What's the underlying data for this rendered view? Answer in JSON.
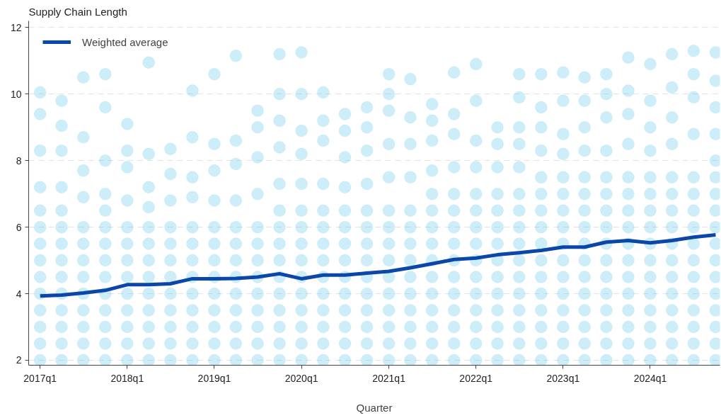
{
  "chart_data": {
    "type": "scatter",
    "ylabel": "Supply Chain Length",
    "xlabel": "Quarter",
    "xlim": [
      "2016-11-14",
      "2024-10-19"
    ],
    "ylim": [
      1.85,
      12.2
    ],
    "yticks": [
      2,
      4,
      6,
      8,
      10,
      12
    ],
    "xticks": [
      {
        "value": "2017-01",
        "label": "2017q1"
      },
      {
        "value": "2018-01",
        "label": "2018q1"
      },
      {
        "value": "2019-01",
        "label": "2019q1"
      },
      {
        "value": "2020-01",
        "label": "2020q1"
      },
      {
        "value": "2021-01",
        "label": "2021q1"
      },
      {
        "value": "2022-01",
        "label": "2022q1"
      },
      {
        "value": "2023-01",
        "label": "2023q1"
      },
      {
        "value": "2024-01",
        "label": "2024q1"
      }
    ],
    "grid": "y",
    "legend": "top left",
    "marker": "circle",
    "series": [
      {
        "color": "#5bc8e8",
        "x": [
          "2017-01",
          "2017-01",
          "2017-01",
          "2017-01",
          "2017-01",
          "2017-01",
          "2017-01",
          "2017-01",
          "2017-01",
          "2017-01",
          "2017-01",
          "2017-01",
          "2017-01",
          "2017-01"
        ],
        "values": [
          2,
          2.5,
          3,
          3.5,
          4,
          4.5,
          5,
          5.5,
          6,
          6.5,
          7.2,
          8.3,
          9.4,
          10.05
        ]
      },
      {
        "color": "#5bc8e8",
        "x": [
          "2017-04",
          "2017-04",
          "2017-04",
          "2017-04",
          "2017-04",
          "2017-04",
          "2017-04",
          "2017-04",
          "2017-04",
          "2017-04",
          "2017-04",
          "2017-04",
          "2017-04",
          "2017-04"
        ],
        "values": [
          2,
          2.5,
          3,
          3.5,
          4,
          4.5,
          5,
          5.5,
          6,
          6.5,
          7.2,
          8.3,
          9.05,
          9.8
        ]
      },
      {
        "color": "#5bc8e8",
        "x": [
          "2017-07",
          "2017-07",
          "2017-07",
          "2017-07",
          "2017-07",
          "2017-07",
          "2017-07",
          "2017-07",
          "2017-07",
          "2017-07",
          "2017-07",
          "2017-07",
          "2017-07"
        ],
        "values": [
          2,
          2.5,
          3,
          3.5,
          4,
          4.5,
          5,
          5.5,
          6,
          6.9,
          7.7,
          8.7,
          10.5
        ]
      },
      {
        "color": "#5bc8e8",
        "x": [
          "2017-10",
          "2017-10",
          "2017-10",
          "2017-10",
          "2017-10",
          "2017-10",
          "2017-10",
          "2017-10",
          "2017-10",
          "2017-10",
          "2017-10",
          "2017-10",
          "2017-10",
          "2017-10"
        ],
        "values": [
          2,
          2.5,
          3,
          3.5,
          4,
          4.5,
          5,
          5.5,
          6,
          6.5,
          7,
          8,
          9.6,
          10.6
        ]
      },
      {
        "color": "#5bc8e8",
        "x": [
          "2018-01",
          "2018-01",
          "2018-01",
          "2018-01",
          "2018-01",
          "2018-01",
          "2018-01",
          "2018-01",
          "2018-01",
          "2018-01",
          "2018-01",
          "2018-01",
          "2018-01"
        ],
        "values": [
          2,
          2.5,
          3,
          3.5,
          4,
          4.5,
          5,
          5.5,
          6,
          6.8,
          7.8,
          8.3,
          9.1
        ]
      },
      {
        "color": "#5bc8e8",
        "x": [
          "2018-04",
          "2018-04",
          "2018-04",
          "2018-04",
          "2018-04",
          "2018-04",
          "2018-04",
          "2018-04",
          "2018-04",
          "2018-04",
          "2018-04",
          "2018-04",
          "2018-04"
        ],
        "values": [
          2,
          2.5,
          3,
          3.5,
          4,
          4.5,
          5,
          5.5,
          6,
          6.6,
          7.2,
          8.2,
          10.95
        ]
      },
      {
        "color": "#5bc8e8",
        "x": [
          "2018-07",
          "2018-07",
          "2018-07",
          "2018-07",
          "2018-07",
          "2018-07",
          "2018-07",
          "2018-07",
          "2018-07",
          "2018-07",
          "2018-07",
          "2018-07"
        ],
        "values": [
          2,
          2.5,
          3,
          3.5,
          4,
          4.5,
          5,
          5.5,
          6,
          6.8,
          7.6,
          8.35
        ]
      },
      {
        "color": "#5bc8e8",
        "x": [
          "2018-10",
          "2018-10",
          "2018-10",
          "2018-10",
          "2018-10",
          "2018-10",
          "2018-10",
          "2018-10",
          "2018-10",
          "2018-10",
          "2018-10",
          "2018-10",
          "2018-10"
        ],
        "values": [
          2,
          2.5,
          3,
          3.5,
          4,
          4.5,
          5,
          5.5,
          6,
          6.9,
          7.5,
          8.7,
          10.1
        ]
      },
      {
        "color": "#5bc8e8",
        "x": [
          "2019-01",
          "2019-01",
          "2019-01",
          "2019-01",
          "2019-01",
          "2019-01",
          "2019-01",
          "2019-01",
          "2019-01",
          "2019-01",
          "2019-01",
          "2019-01",
          "2019-01"
        ],
        "values": [
          2,
          2.5,
          3,
          3.5,
          4,
          4.5,
          5,
          5.5,
          6,
          6.8,
          7.7,
          8.5,
          10.6
        ]
      },
      {
        "color": "#5bc8e8",
        "x": [
          "2019-04",
          "2019-04",
          "2019-04",
          "2019-04",
          "2019-04",
          "2019-04",
          "2019-04",
          "2019-04",
          "2019-04",
          "2019-04",
          "2019-04",
          "2019-04",
          "2019-04"
        ],
        "values": [
          2,
          2.5,
          3,
          3.5,
          4,
          4.5,
          5,
          5.5,
          6,
          6.8,
          7.9,
          8.6,
          11.15
        ]
      },
      {
        "color": "#5bc8e8",
        "x": [
          "2019-07",
          "2019-07",
          "2019-07",
          "2019-07",
          "2019-07",
          "2019-07",
          "2019-07",
          "2019-07",
          "2019-07",
          "2019-07",
          "2019-07",
          "2019-07",
          "2019-07"
        ],
        "values": [
          2,
          2.5,
          3,
          3.5,
          4,
          4.5,
          5,
          5.5,
          6,
          7,
          8.1,
          9,
          9.5
        ]
      },
      {
        "color": "#5bc8e8",
        "x": [
          "2019-10",
          "2019-10",
          "2019-10",
          "2019-10",
          "2019-10",
          "2019-10",
          "2019-10",
          "2019-10",
          "2019-10",
          "2019-10",
          "2019-10",
          "2019-10",
          "2019-10",
          "2019-10",
          "2019-10"
        ],
        "values": [
          2,
          2.5,
          3,
          3.5,
          4,
          4.5,
          5,
          5.5,
          6,
          6.5,
          7.3,
          8.4,
          9.2,
          10,
          11.2
        ]
      },
      {
        "color": "#5bc8e8",
        "x": [
          "2020-01",
          "2020-01",
          "2020-01",
          "2020-01",
          "2020-01",
          "2020-01",
          "2020-01",
          "2020-01",
          "2020-01",
          "2020-01",
          "2020-01",
          "2020-01",
          "2020-01",
          "2020-01",
          "2020-01"
        ],
        "values": [
          2,
          2.5,
          3,
          3.5,
          4,
          4.5,
          5,
          5.5,
          6,
          6.5,
          7.3,
          8.2,
          8.9,
          10,
          11.25
        ]
      },
      {
        "color": "#5bc8e8",
        "x": [
          "2020-04",
          "2020-04",
          "2020-04",
          "2020-04",
          "2020-04",
          "2020-04",
          "2020-04",
          "2020-04",
          "2020-04",
          "2020-04",
          "2020-04",
          "2020-04",
          "2020-04",
          "2020-04"
        ],
        "values": [
          2,
          2.5,
          3,
          3.5,
          4,
          4.5,
          5,
          5.5,
          6,
          6.5,
          7.3,
          8.6,
          9.2,
          10.05
        ]
      },
      {
        "color": "#5bc8e8",
        "x": [
          "2020-07",
          "2020-07",
          "2020-07",
          "2020-07",
          "2020-07",
          "2020-07",
          "2020-07",
          "2020-07",
          "2020-07",
          "2020-07",
          "2020-07",
          "2020-07",
          "2020-07",
          "2020-07"
        ],
        "values": [
          2,
          2.5,
          3,
          3.5,
          4,
          4.5,
          5,
          5.5,
          6,
          6.5,
          7.2,
          8.1,
          8.9,
          9.4
        ]
      },
      {
        "color": "#5bc8e8",
        "x": [
          "2020-10",
          "2020-10",
          "2020-10",
          "2020-10",
          "2020-10",
          "2020-10",
          "2020-10",
          "2020-10",
          "2020-10",
          "2020-10",
          "2020-10",
          "2020-10",
          "2020-10",
          "2020-10"
        ],
        "values": [
          2,
          2.5,
          3,
          3.5,
          4,
          4.5,
          5,
          5.5,
          6,
          6.5,
          7.3,
          8.3,
          9,
          9.6
        ]
      },
      {
        "color": "#5bc8e8",
        "x": [
          "2021-01",
          "2021-01",
          "2021-01",
          "2021-01",
          "2021-01",
          "2021-01",
          "2021-01",
          "2021-01",
          "2021-01",
          "2021-01",
          "2021-01",
          "2021-01",
          "2021-01",
          "2021-01",
          "2021-01"
        ],
        "values": [
          2,
          2.5,
          3,
          3.5,
          4,
          4.5,
          5,
          5.5,
          6,
          6.5,
          7.5,
          8.5,
          9.5,
          10,
          10.6
        ]
      },
      {
        "color": "#5bc8e8",
        "x": [
          "2021-04",
          "2021-04",
          "2021-04",
          "2021-04",
          "2021-04",
          "2021-04",
          "2021-04",
          "2021-04",
          "2021-04",
          "2021-04",
          "2021-04",
          "2021-04",
          "2021-04",
          "2021-04"
        ],
        "values": [
          2,
          2.5,
          3,
          3.5,
          4,
          4.5,
          5,
          5.5,
          6,
          6.5,
          7.5,
          8.5,
          9.3,
          10.45
        ]
      },
      {
        "color": "#5bc8e8",
        "x": [
          "2021-07",
          "2021-07",
          "2021-07",
          "2021-07",
          "2021-07",
          "2021-07",
          "2021-07",
          "2021-07",
          "2021-07",
          "2021-07",
          "2021-07",
          "2021-07",
          "2021-07",
          "2021-07",
          "2021-07"
        ],
        "values": [
          2,
          2.5,
          3,
          3.5,
          4,
          4.5,
          5,
          5.5,
          6,
          6.5,
          7,
          7.7,
          8.6,
          9.2,
          9.7
        ]
      },
      {
        "color": "#5bc8e8",
        "x": [
          "2021-10",
          "2021-10",
          "2021-10",
          "2021-10",
          "2021-10",
          "2021-10",
          "2021-10",
          "2021-10",
          "2021-10",
          "2021-10",
          "2021-10",
          "2021-10",
          "2021-10",
          "2021-10",
          "2021-10"
        ],
        "values": [
          2,
          2.5,
          3,
          3.5,
          4,
          4.5,
          5,
          5.5,
          6,
          6.5,
          7,
          7.8,
          8.8,
          9.4,
          10.65
        ]
      },
      {
        "color": "#5bc8e8",
        "x": [
          "2022-01",
          "2022-01",
          "2022-01",
          "2022-01",
          "2022-01",
          "2022-01",
          "2022-01",
          "2022-01",
          "2022-01",
          "2022-01",
          "2022-01",
          "2022-01",
          "2022-01",
          "2022-01",
          "2022-01"
        ],
        "values": [
          2,
          2.5,
          3,
          3.5,
          4,
          4.5,
          5,
          5.5,
          6,
          6.5,
          7,
          7.8,
          8.6,
          9.8,
          10.9
        ]
      },
      {
        "color": "#5bc8e8",
        "x": [
          "2022-04",
          "2022-04",
          "2022-04",
          "2022-04",
          "2022-04",
          "2022-04",
          "2022-04",
          "2022-04",
          "2022-04",
          "2022-04",
          "2022-04",
          "2022-04",
          "2022-04",
          "2022-04"
        ],
        "values": [
          2,
          2.5,
          3,
          3.5,
          4,
          4.5,
          5,
          5.5,
          6,
          6.5,
          7,
          7.8,
          8.5,
          9
        ]
      },
      {
        "color": "#5bc8e8",
        "x": [
          "2022-07",
          "2022-07",
          "2022-07",
          "2022-07",
          "2022-07",
          "2022-07",
          "2022-07",
          "2022-07",
          "2022-07",
          "2022-07",
          "2022-07",
          "2022-07",
          "2022-07",
          "2022-07",
          "2022-07",
          "2022-07"
        ],
        "values": [
          2,
          2.5,
          3,
          3.5,
          4,
          4.5,
          5,
          5.5,
          6,
          6.5,
          7,
          7.8,
          8.5,
          9,
          9.9,
          10.6
        ]
      },
      {
        "color": "#5bc8e8",
        "x": [
          "2022-10",
          "2022-10",
          "2022-10",
          "2022-10",
          "2022-10",
          "2022-10",
          "2022-10",
          "2022-10",
          "2022-10",
          "2022-10",
          "2022-10",
          "2022-10",
          "2022-10",
          "2022-10",
          "2022-10",
          "2022-10"
        ],
        "values": [
          2,
          2.5,
          3,
          3.5,
          4,
          4.5,
          5,
          5.5,
          6,
          6.5,
          7,
          7.5,
          8.3,
          9,
          9.6,
          10.6
        ]
      },
      {
        "color": "#5bc8e8",
        "x": [
          "2023-01",
          "2023-01",
          "2023-01",
          "2023-01",
          "2023-01",
          "2023-01",
          "2023-01",
          "2023-01",
          "2023-01",
          "2023-01",
          "2023-01",
          "2023-01",
          "2023-01",
          "2023-01",
          "2023-01",
          "2023-01"
        ],
        "values": [
          2,
          2.5,
          3,
          3.5,
          4,
          4.5,
          5,
          5.5,
          6,
          6.5,
          7,
          7.5,
          8.2,
          8.8,
          9.8,
          10.65
        ]
      },
      {
        "color": "#5bc8e8",
        "x": [
          "2023-04",
          "2023-04",
          "2023-04",
          "2023-04",
          "2023-04",
          "2023-04",
          "2023-04",
          "2023-04",
          "2023-04",
          "2023-04",
          "2023-04",
          "2023-04",
          "2023-04",
          "2023-04",
          "2023-04",
          "2023-04"
        ],
        "values": [
          2,
          2.5,
          3,
          3.5,
          4,
          4.5,
          5,
          5.5,
          6,
          6.5,
          7,
          7.5,
          8.3,
          9,
          9.8,
          10.5
        ]
      },
      {
        "color": "#5bc8e8",
        "x": [
          "2023-07",
          "2023-07",
          "2023-07",
          "2023-07",
          "2023-07",
          "2023-07",
          "2023-07",
          "2023-07",
          "2023-07",
          "2023-07",
          "2023-07",
          "2023-07",
          "2023-07",
          "2023-07",
          "2023-07",
          "2023-07"
        ],
        "values": [
          2,
          2.5,
          3,
          3.5,
          4,
          4.5,
          5,
          5.5,
          6,
          6.5,
          7,
          7.5,
          8.3,
          9.3,
          10,
          10.6
        ]
      },
      {
        "color": "#5bc8e8",
        "x": [
          "2023-10",
          "2023-10",
          "2023-10",
          "2023-10",
          "2023-10",
          "2023-10",
          "2023-10",
          "2023-10",
          "2023-10",
          "2023-10",
          "2023-10",
          "2023-10",
          "2023-10",
          "2023-10",
          "2023-10",
          "2023-10"
        ],
        "values": [
          2,
          2.5,
          3,
          3.5,
          4,
          4.5,
          5,
          5.5,
          6,
          6.5,
          7,
          7.5,
          8.5,
          9.4,
          10.1,
          11.1
        ]
      },
      {
        "color": "#5bc8e8",
        "x": [
          "2024-01",
          "2024-01",
          "2024-01",
          "2024-01",
          "2024-01",
          "2024-01",
          "2024-01",
          "2024-01",
          "2024-01",
          "2024-01",
          "2024-01",
          "2024-01",
          "2024-01",
          "2024-01",
          "2024-01",
          "2024-01"
        ],
        "values": [
          2,
          2.5,
          3,
          3.5,
          4,
          4.5,
          5,
          5.5,
          6,
          6.5,
          7,
          7.5,
          8.3,
          9,
          9.8,
          10.9
        ]
      },
      {
        "color": "#5bc8e8",
        "x": [
          "2024-04",
          "2024-04",
          "2024-04",
          "2024-04",
          "2024-04",
          "2024-04",
          "2024-04",
          "2024-04",
          "2024-04",
          "2024-04",
          "2024-04",
          "2024-04",
          "2024-04",
          "2024-04",
          "2024-04",
          "2024-04"
        ],
        "values": [
          2,
          2.5,
          3,
          3.5,
          4,
          4.5,
          5,
          5.5,
          6,
          6.5,
          7,
          7.5,
          8.5,
          9.3,
          10.2,
          11.2
        ]
      },
      {
        "color": "#5bc8e8",
        "x": [
          "2024-07",
          "2024-07",
          "2024-07",
          "2024-07",
          "2024-07",
          "2024-07",
          "2024-07",
          "2024-07",
          "2024-07",
          "2024-07",
          "2024-07",
          "2024-07",
          "2024-07",
          "2024-07",
          "2024-07",
          "2024-07"
        ],
        "values": [
          2,
          2.5,
          3,
          3.5,
          4,
          4.5,
          5,
          5.5,
          6,
          6.5,
          7,
          7.5,
          8.8,
          9.9,
          10.6,
          11.3
        ]
      },
      {
        "color": "#5bc8e8",
        "x": [
          "2024-10",
          "2024-10",
          "2024-10",
          "2024-10",
          "2024-10",
          "2024-10",
          "2024-10",
          "2024-10",
          "2024-10",
          "2024-10",
          "2024-10",
          "2024-10",
          "2024-10",
          "2024-10",
          "2024-10",
          "2024-10",
          "2024-10"
        ],
        "values": [
          2,
          2.5,
          3,
          3.5,
          4,
          4.5,
          5,
          5.5,
          6,
          6.5,
          7,
          7.5,
          8,
          8.8,
          9.6,
          10.4,
          11.25
        ]
      },
      {
        "type": "line",
        "name": "Weighted average",
        "color": "#0a47a9",
        "marker": "none",
        "x": [
          "2017-01",
          "2017-04",
          "2017-07",
          "2017-10",
          "2018-01",
          "2018-04",
          "2018-07",
          "2018-10",
          "2019-01",
          "2019-04",
          "2019-07",
          "2019-10",
          "2020-01",
          "2020-04",
          "2020-07",
          "2020-10",
          "2021-01",
          "2021-04",
          "2021-07",
          "2021-10",
          "2022-01",
          "2022-04",
          "2022-07",
          "2022-10",
          "2023-01",
          "2023-04",
          "2023-07",
          "2023-10",
          "2024-01",
          "2024-04",
          "2024-07",
          "2024-10"
        ],
        "values": [
          3.93,
          3.96,
          4.02,
          4.1,
          4.27,
          4.27,
          4.3,
          4.45,
          4.45,
          4.46,
          4.5,
          4.6,
          4.45,
          4.56,
          4.56,
          4.62,
          4.67,
          4.78,
          4.9,
          5.03,
          5.07,
          5.17,
          5.23,
          5.3,
          5.4,
          5.4,
          5.55,
          5.6,
          5.53,
          5.6,
          5.7,
          5.77
        ]
      }
    ]
  }
}
